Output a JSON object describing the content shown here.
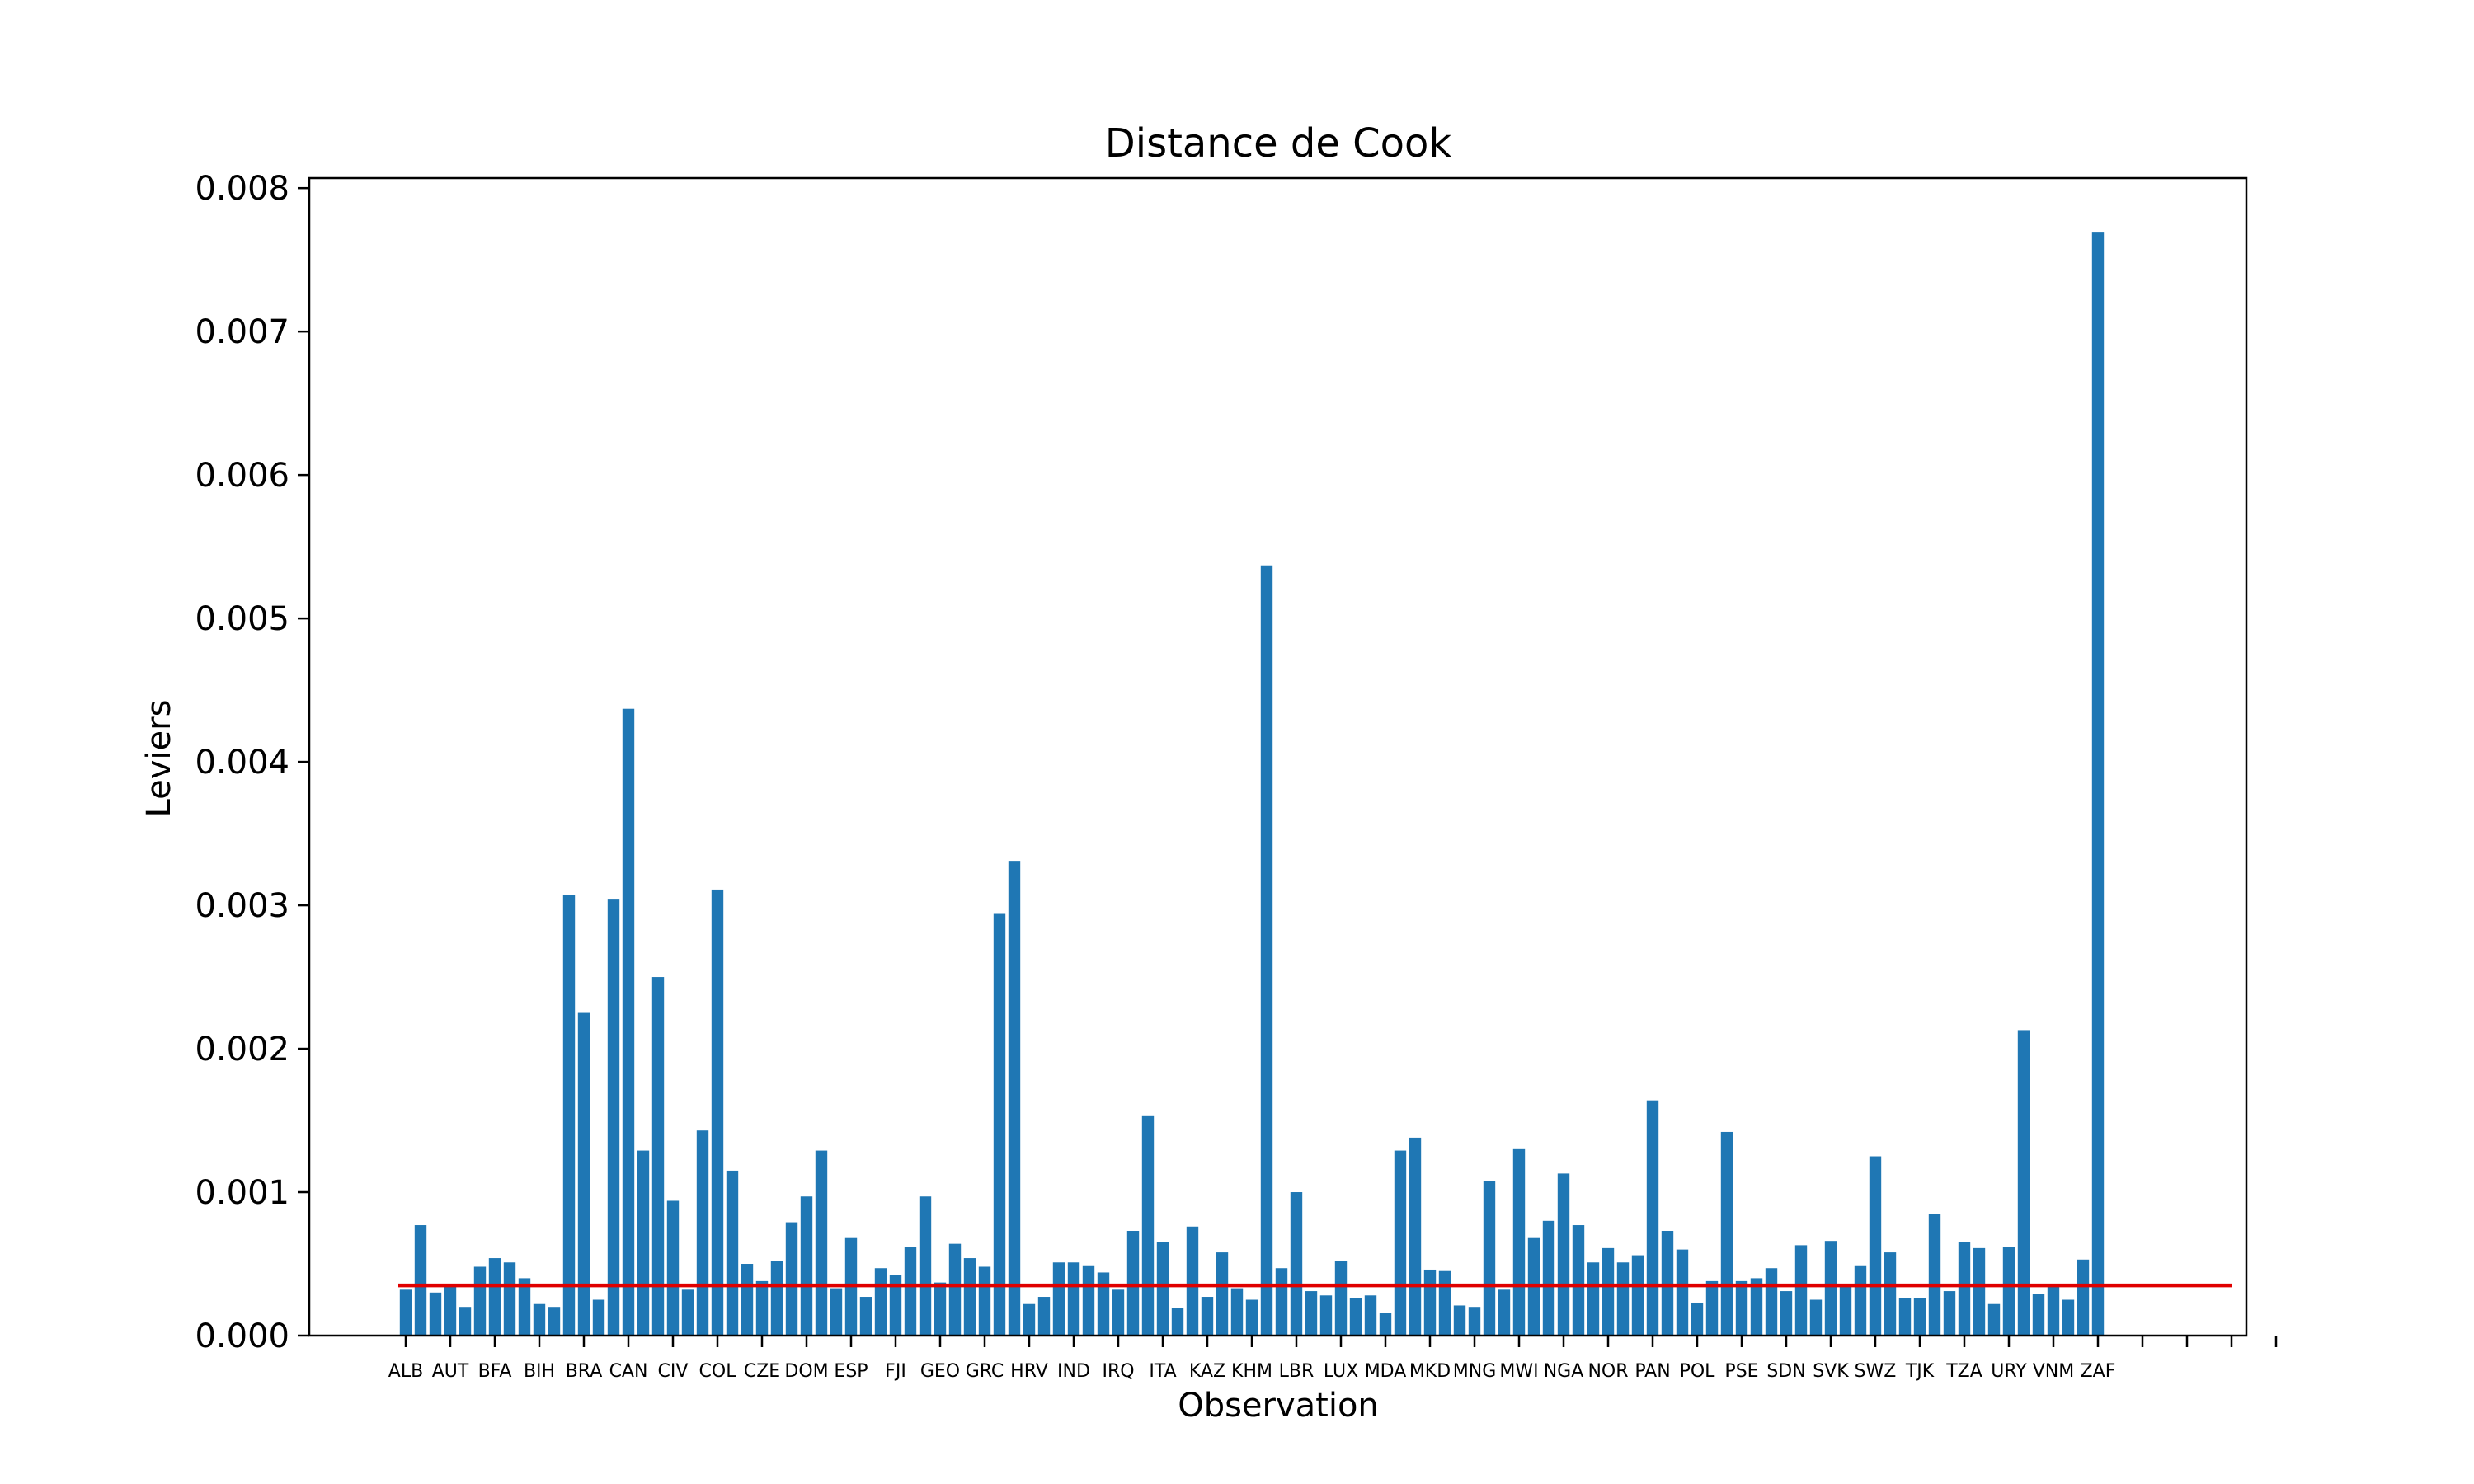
{
  "chart_data": {
    "type": "bar",
    "title": "Distance de Cook",
    "xlabel": "Observation",
    "ylabel": "Leviers",
    "ylim": [
      0,
      0.00807
    ],
    "yticks": [
      0.0,
      0.001,
      0.002,
      0.003,
      0.004,
      0.005,
      0.006,
      0.007,
      0.008
    ],
    "ytick_labels": [
      "0.000",
      "0.001",
      "0.002",
      "0.003",
      "0.004",
      "0.005",
      "0.006",
      "0.007",
      "0.008"
    ],
    "xtick_labels": [
      "ALB",
      "AUT",
      "BFA",
      "BIH",
      "BRA",
      "CAN",
      "CIV",
      "COL",
      "CZE",
      "DOM",
      "ESP",
      "FJI",
      "GEO",
      "GRC",
      "HRV",
      "IND",
      "IRQ",
      "ITA",
      "KAZ",
      "KHM",
      "LBR",
      "LUX",
      "MDA",
      "MKD",
      "MNG",
      "MWI",
      "NGA",
      "NOR",
      "PAN",
      "POL",
      "PSE",
      "SDN",
      "SVK",
      "SWZ",
      "TJK",
      "TZA",
      "URY",
      "VNM",
      "ZAF",
      "",
      "",
      "",
      ""
    ],
    "values": [
      0.00032,
      0.00077,
      0.0003,
      0.00034,
      0.0002,
      0.00048,
      0.00054,
      0.00051,
      0.0004,
      0.00022,
      0.0002,
      0.00307,
      0.00225,
      0.00025,
      0.00304,
      0.00437,
      0.00129,
      0.0025,
      0.00094,
      0.00032,
      0.00143,
      0.00311,
      0.00115,
      0.0005,
      0.00038,
      0.00052,
      0.00079,
      0.00097,
      0.00129,
      0.00033,
      0.00068,
      0.00027,
      0.00047,
      0.00042,
      0.00062,
      0.00097,
      0.00037,
      0.00064,
      0.00054,
      0.00048,
      0.00294,
      0.00331,
      0.00022,
      0.00027,
      0.00051,
      0.00051,
      0.00049,
      0.00044,
      0.00032,
      0.00073,
      0.00153,
      0.00065,
      0.00019,
      0.00076,
      0.00027,
      0.00058,
      0.00033,
      0.00025,
      0.00537,
      0.00047,
      0.001,
      0.00031,
      0.00028,
      0.00052,
      0.00026,
      0.00028,
      0.00016,
      0.00129,
      0.00138,
      0.00046,
      0.00045,
      0.00021,
      0.0002,
      0.00108,
      0.00032,
      0.0013,
      0.00068,
      0.0008,
      0.00113,
      0.00077,
      0.00051,
      0.00061,
      0.00051,
      0.00056,
      0.00164,
      0.00073,
      0.0006,
      0.00023,
      0.00038,
      0.00142,
      0.00038,
      0.0004,
      0.00047,
      0.00031,
      0.00063,
      0.00025,
      0.00066,
      0.00035,
      0.00049,
      0.00125,
      0.00058,
      0.00026,
      0.00026,
      0.00085,
      0.00031,
      0.00065,
      0.00061,
      0.00022,
      0.00062,
      0.00213,
      0.00029,
      0.00034,
      0.00025,
      0.00053,
      0.00769
    ],
    "threshold": {
      "value": 0.00035,
      "color": "#e00000"
    },
    "bar_color": "#1f77b4",
    "grid": false,
    "legend": "none"
  }
}
